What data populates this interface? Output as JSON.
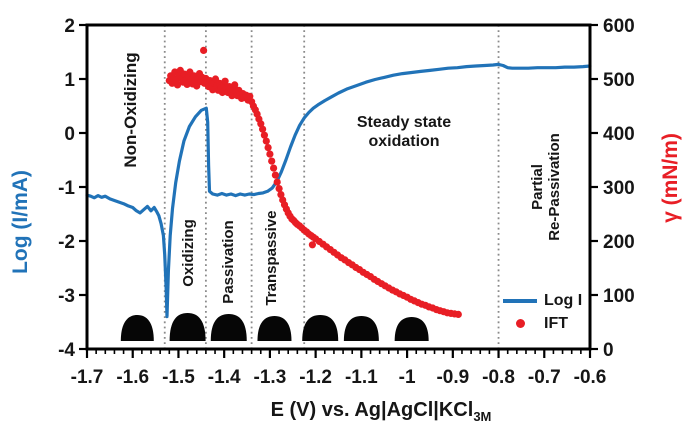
{
  "figure": {
    "background": "#ffffff",
    "frame_color": "#000000"
  },
  "axes": {
    "x": {
      "label": "E (V) vs. Ag|AgCl|KCl",
      "label_subscript": "3M",
      "min": -1.7,
      "max": -0.6,
      "major_ticks": [
        -1.7,
        -1.6,
        -1.5,
        -1.4,
        -1.3,
        -1.2,
        -1.1,
        -1.0,
        -0.9,
        -0.8,
        -0.7,
        -0.6
      ],
      "tick_labels": [
        "-1.7",
        "-1.6",
        "-1.5",
        "-1.4",
        "-1.3",
        "-1.2",
        "-1.1",
        "-1",
        "-0.9",
        "-0.8",
        "-0.7",
        "-0.6"
      ],
      "minor_step": 0.02
    },
    "y_left": {
      "label": "Log (I/mA)",
      "min": -4,
      "max": 2,
      "major_ticks": [
        2,
        1,
        0,
        -1,
        -2,
        -3,
        -4
      ],
      "tick_labels": [
        "2",
        "1",
        "0",
        "-1",
        "-2",
        "-3",
        "-4"
      ],
      "color": "#2173b8"
    },
    "y_right": {
      "label": "γ (mN/m)",
      "min": 0,
      "max": 600,
      "major_ticks": [
        600,
        500,
        400,
        300,
        200,
        100,
        0
      ],
      "tick_labels": [
        "600",
        "500",
        "400",
        "300",
        "200",
        "100",
        "0"
      ],
      "color": "#e81e25"
    }
  },
  "regions": [
    {
      "label": "Non-Oxidizing"
    },
    {
      "label": "Oxidizing"
    },
    {
      "label": "Passivation"
    },
    {
      "label": "Transpassive"
    },
    {
      "line1": "Steady state",
      "line2": "oxidation"
    },
    {
      "line1": "Partial",
      "line2": "Re-Passivation"
    }
  ],
  "legend": {
    "items": [
      {
        "label": "Log I",
        "marker": "line",
        "color": "#2173b8"
      },
      {
        "label": "IFT",
        "marker": "dot",
        "color": "#e81e25"
      }
    ]
  },
  "droplets": {
    "color": "#060606",
    "centers_E": [
      -1.59,
      -1.48,
      -1.39,
      -1.29,
      -1.19,
      -1.1,
      -0.99
    ],
    "widths": [
      33,
      36,
      36,
      34,
      36,
      35,
      34
    ],
    "heights": [
      26,
      28,
      27,
      25,
      26,
      25,
      24
    ]
  },
  "chart_data": {
    "type": "line+scatter",
    "title": "",
    "xlabel": "E (V) vs. Ag|AgCl|KCl 3M",
    "x_range": [
      -1.7,
      -0.6
    ],
    "grid": false,
    "legend_position": "inside-bottom-right",
    "y_left": {
      "label": "Log (I/mA)",
      "range": [
        -4,
        2
      ]
    },
    "y_right": {
      "label": "γ (mN/m)",
      "range": [
        0,
        600
      ]
    },
    "region_boundaries_E": [
      -1.53,
      -1.44,
      -1.34,
      -1.225,
      -0.8
    ],
    "boundary_line_style": {
      "color": "#8a8a8a",
      "dash": "dotted"
    },
    "series": [
      {
        "name": "Log I",
        "axis": "left",
        "type": "line",
        "color": "#2173b8",
        "points": [
          [
            -1.7,
            -1.15
          ],
          [
            -1.692,
            -1.17
          ],
          [
            -1.684,
            -1.2
          ],
          [
            -1.676,
            -1.16
          ],
          [
            -1.668,
            -1.19
          ],
          [
            -1.66,
            -1.17
          ],
          [
            -1.65,
            -1.22
          ],
          [
            -1.64,
            -1.25
          ],
          [
            -1.63,
            -1.28
          ],
          [
            -1.62,
            -1.31
          ],
          [
            -1.61,
            -1.35
          ],
          [
            -1.6,
            -1.38
          ],
          [
            -1.592,
            -1.44
          ],
          [
            -1.584,
            -1.48
          ],
          [
            -1.576,
            -1.42
          ],
          [
            -1.568,
            -1.36
          ],
          [
            -1.56,
            -1.44
          ],
          [
            -1.553,
            -1.38
          ],
          [
            -1.548,
            -1.45
          ],
          [
            -1.543,
            -1.53
          ],
          [
            -1.538,
            -1.68
          ],
          [
            -1.533,
            -1.9
          ],
          [
            -1.53,
            -2.25
          ],
          [
            -1.527,
            -2.85
          ],
          [
            -1.525,
            -3.4
          ],
          [
            -1.522,
            -2.55
          ],
          [
            -1.518,
            -1.9
          ],
          [
            -1.513,
            -1.4
          ],
          [
            -1.506,
            -0.92
          ],
          [
            -1.498,
            -0.52
          ],
          [
            -1.488,
            -0.15
          ],
          [
            -1.476,
            0.12
          ],
          [
            -1.463,
            0.3
          ],
          [
            -1.45,
            0.42
          ],
          [
            -1.439,
            0.46
          ],
          [
            -1.436,
            0.2
          ],
          [
            -1.434,
            -0.6
          ],
          [
            -1.432,
            -1.08
          ],
          [
            -1.425,
            -1.13
          ],
          [
            -1.415,
            -1.15
          ],
          [
            -1.405,
            -1.12
          ],
          [
            -1.395,
            -1.15
          ],
          [
            -1.385,
            -1.13
          ],
          [
            -1.375,
            -1.16
          ],
          [
            -1.365,
            -1.13
          ],
          [
            -1.355,
            -1.15
          ],
          [
            -1.345,
            -1.13
          ],
          [
            -1.335,
            -1.14
          ],
          [
            -1.325,
            -1.12
          ],
          [
            -1.315,
            -1.11
          ],
          [
            -1.305,
            -1.08
          ],
          [
            -1.295,
            -1.02
          ],
          [
            -1.285,
            -0.9
          ],
          [
            -1.275,
            -0.72
          ],
          [
            -1.265,
            -0.5
          ],
          [
            -1.255,
            -0.26
          ],
          [
            -1.245,
            -0.04
          ],
          [
            -1.235,
            0.14
          ],
          [
            -1.225,
            0.28
          ],
          [
            -1.215,
            0.38
          ],
          [
            -1.205,
            0.46
          ],
          [
            -1.195,
            0.52
          ],
          [
            -1.18,
            0.6
          ],
          [
            -1.165,
            0.67
          ],
          [
            -1.15,
            0.74
          ],
          [
            -1.13,
            0.82
          ],
          [
            -1.11,
            0.88
          ],
          [
            -1.09,
            0.94
          ],
          [
            -1.07,
            0.99
          ],
          [
            -1.05,
            1.03
          ],
          [
            -1.03,
            1.07
          ],
          [
            -1.01,
            1.1
          ],
          [
            -0.99,
            1.12
          ],
          [
            -0.97,
            1.14
          ],
          [
            -0.95,
            1.16
          ],
          [
            -0.93,
            1.18
          ],
          [
            -0.91,
            1.2
          ],
          [
            -0.89,
            1.21
          ],
          [
            -0.87,
            1.23
          ],
          [
            -0.85,
            1.24
          ],
          [
            -0.83,
            1.25
          ],
          [
            -0.812,
            1.26
          ],
          [
            -0.8,
            1.27
          ],
          [
            -0.79,
            1.25
          ],
          [
            -0.78,
            1.21
          ],
          [
            -0.77,
            1.2
          ],
          [
            -0.755,
            1.2
          ],
          [
            -0.735,
            1.2
          ],
          [
            -0.715,
            1.21
          ],
          [
            -0.695,
            1.21
          ],
          [
            -0.675,
            1.21
          ],
          [
            -0.655,
            1.22
          ],
          [
            -0.635,
            1.22
          ],
          [
            -0.615,
            1.23
          ],
          [
            -0.6,
            1.24
          ]
        ]
      },
      {
        "name": "IFT",
        "axis": "right",
        "type": "scatter",
        "color": "#e81e25",
        "points": [
          [
            -1.52,
            497
          ],
          [
            -1.517,
            506
          ],
          [
            -1.514,
            492
          ],
          [
            -1.511,
            501
          ],
          [
            -1.508,
            513
          ],
          [
            -1.505,
            498
          ],
          [
            -1.502,
            489
          ],
          [
            -1.499,
            507
          ],
          [
            -1.496,
            516
          ],
          [
            -1.493,
            501
          ],
          [
            -1.49,
            494
          ],
          [
            -1.487,
            509
          ],
          [
            -1.484,
            498
          ],
          [
            -1.481,
            490
          ],
          [
            -1.478,
            504
          ],
          [
            -1.475,
            513
          ],
          [
            -1.472,
            499
          ],
          [
            -1.469,
            491
          ],
          [
            -1.466,
            506
          ],
          [
            -1.463,
            497
          ],
          [
            -1.46,
            487
          ],
          [
            -1.457,
            500
          ],
          [
            -1.454,
            510
          ],
          [
            -1.451,
            495
          ],
          [
            -1.448,
            503
          ],
          [
            -1.445,
            553
          ],
          [
            -1.443,
            492
          ],
          [
            -1.44,
            501
          ],
          [
            -1.437,
            494
          ],
          [
            -1.434,
            486
          ],
          [
            -1.431,
            497
          ],
          [
            -1.428,
            490
          ],
          [
            -1.425,
            480
          ],
          [
            -1.422,
            493
          ],
          [
            -1.419,
            500
          ],
          [
            -1.416,
            488
          ],
          [
            -1.413,
            479
          ],
          [
            -1.41,
            492
          ],
          [
            -1.407,
            484
          ],
          [
            -1.404,
            475
          ],
          [
            -1.401,
            488
          ],
          [
            -1.398,
            496
          ],
          [
            -1.395,
            483
          ],
          [
            -1.392,
            475
          ],
          [
            -1.389,
            486
          ],
          [
            -1.386,
            478
          ],
          [
            -1.383,
            469
          ],
          [
            -1.38,
            480
          ],
          [
            -1.377,
            489
          ],
          [
            -1.374,
            477
          ],
          [
            -1.371,
            469
          ],
          [
            -1.368,
            479
          ],
          [
            -1.365,
            471
          ],
          [
            -1.362,
            464
          ],
          [
            -1.359,
            473
          ],
          [
            -1.356,
            466
          ],
          [
            -1.352,
            470
          ],
          [
            -1.348,
            461
          ],
          [
            -1.344,
            468
          ],
          [
            -1.34,
            458
          ],
          [
            -1.336,
            450
          ],
          [
            -1.332,
            443
          ],
          [
            -1.328,
            435
          ],
          [
            -1.324,
            426
          ],
          [
            -1.32,
            417
          ],
          [
            -1.316,
            407
          ],
          [
            -1.312,
            396
          ],
          [
            -1.308,
            385
          ],
          [
            -1.304,
            373
          ],
          [
            -1.3,
            361
          ],
          [
            -1.296,
            348
          ],
          [
            -1.292,
            335
          ],
          [
            -1.288,
            322
          ],
          [
            -1.284,
            309
          ],
          [
            -1.28,
            297
          ],
          [
            -1.276,
            286
          ],
          [
            -1.272,
            276
          ],
          [
            -1.268,
            267
          ],
          [
            -1.264,
            259
          ],
          [
            -1.26,
            252
          ],
          [
            -1.256,
            246
          ],
          [
            -1.252,
            241
          ],
          [
            -1.248,
            238
          ],
          [
            -1.244,
            234
          ],
          [
            -1.24,
            231
          ],
          [
            -1.235,
            228
          ],
          [
            -1.23,
            224
          ],
          [
            -1.225,
            220
          ],
          [
            -1.22,
            217
          ],
          [
            -1.215,
            213
          ],
          [
            -1.21,
            210
          ],
          [
            -1.207,
            193
          ],
          [
            -1.205,
            207
          ],
          [
            -1.2,
            204
          ],
          [
            -1.192,
            199
          ],
          [
            -1.184,
            194
          ],
          [
            -1.176,
            189
          ],
          [
            -1.168,
            184
          ],
          [
            -1.16,
            179
          ],
          [
            -1.152,
            174
          ],
          [
            -1.144,
            169
          ],
          [
            -1.136,
            165
          ],
          [
            -1.128,
            160
          ],
          [
            -1.12,
            156
          ],
          [
            -1.112,
            151
          ],
          [
            -1.104,
            147
          ],
          [
            -1.096,
            142
          ],
          [
            -1.088,
            138
          ],
          [
            -1.08,
            134
          ],
          [
            -1.072,
            129
          ],
          [
            -1.064,
            125
          ],
          [
            -1.056,
            121
          ],
          [
            -1.048,
            117
          ],
          [
            -1.04,
            113
          ],
          [
            -1.032,
            109
          ],
          [
            -1.024,
            106
          ],
          [
            -1.016,
            102
          ],
          [
            -1.008,
            99
          ],
          [
            -1.0,
            96
          ],
          [
            -0.992,
            92
          ],
          [
            -0.984,
            89
          ],
          [
            -0.976,
            86
          ],
          [
            -0.968,
            83
          ],
          [
            -0.96,
            81
          ],
          [
            -0.952,
            78
          ],
          [
            -0.944,
            76
          ],
          [
            -0.936,
            73
          ],
          [
            -0.928,
            71
          ],
          [
            -0.92,
            69
          ],
          [
            -0.912,
            67
          ],
          [
            -0.904,
            66
          ],
          [
            -0.896,
            65
          ],
          [
            -0.888,
            64
          ]
        ]
      }
    ],
    "annotations": [
      "Non-Oxidizing",
      "Oxidizing",
      "Passivation",
      "Transpassive",
      "Steady state oxidation",
      "Partial Re-Passivation"
    ]
  }
}
